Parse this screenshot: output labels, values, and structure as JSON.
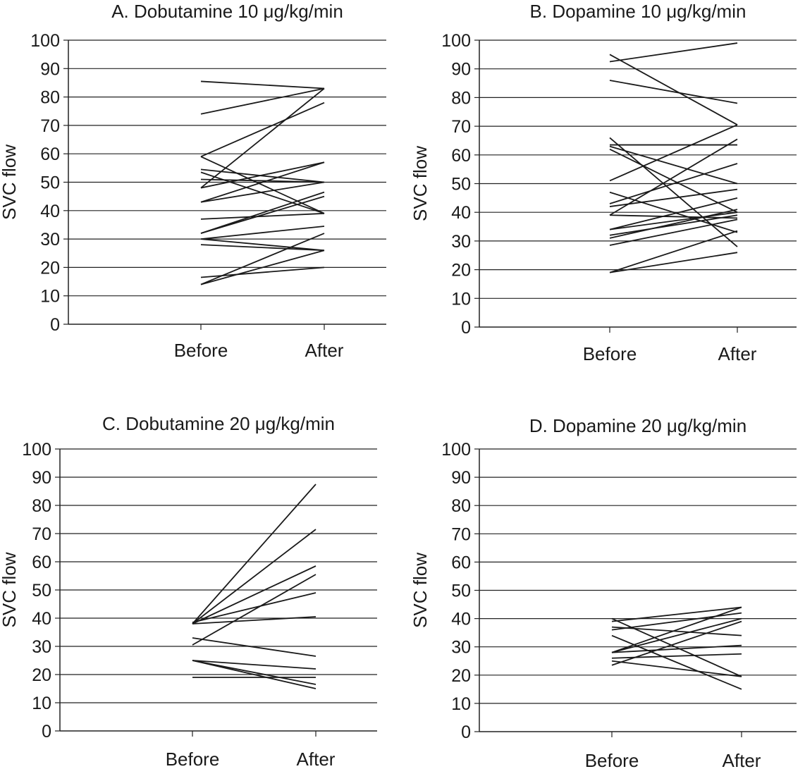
{
  "chart_data": [
    {
      "type": "line",
      "title": "A. Dobutamine 10 μg/kg/min",
      "ylabel": "SVC flow",
      "categories": [
        "Before",
        "After"
      ],
      "ylim": [
        0,
        100
      ],
      "yticks": [
        0,
        10,
        20,
        30,
        40,
        50,
        60,
        70,
        80,
        90,
        100
      ],
      "grid": true,
      "pairs": [
        [
          85.5,
          83
        ],
        [
          74,
          83
        ],
        [
          59,
          78
        ],
        [
          48,
          83
        ],
        [
          59,
          39
        ],
        [
          54.5,
          50
        ],
        [
          53.5,
          39
        ],
        [
          51,
          50
        ],
        [
          48,
          57
        ],
        [
          43,
          57
        ],
        [
          43,
          50
        ],
        [
          37,
          39
        ],
        [
          32,
          46.5
        ],
        [
          32,
          45
        ],
        [
          30,
          26
        ],
        [
          28,
          26
        ],
        [
          30,
          34.5
        ],
        [
          16.5,
          20
        ],
        [
          14,
          32
        ],
        [
          14,
          26
        ]
      ]
    },
    {
      "type": "line",
      "title": "B. Dopamine 10 μg/kg/min",
      "ylabel": "SVC flow",
      "categories": [
        "Before",
        "After"
      ],
      "ylim": [
        0,
        100
      ],
      "yticks": [
        0,
        10,
        20,
        30,
        40,
        50,
        60,
        70,
        80,
        90,
        100
      ],
      "grid": true,
      "pairs": [
        [
          92.5,
          99
        ],
        [
          95,
          70.5
        ],
        [
          86,
          78
        ],
        [
          51,
          70.5
        ],
        [
          63.5,
          63.5
        ],
        [
          63,
          50
        ],
        [
          62,
          40
        ],
        [
          66,
          28
        ],
        [
          47,
          33
        ],
        [
          43,
          57
        ],
        [
          39,
          65.5
        ],
        [
          42,
          48
        ],
        [
          39,
          38
        ],
        [
          34,
          45
        ],
        [
          34,
          40
        ],
        [
          32,
          39
        ],
        [
          31,
          41
        ],
        [
          28.5,
          37.5
        ],
        [
          19,
          33.5
        ],
        [
          19,
          26
        ]
      ]
    },
    {
      "type": "line",
      "title": "C. Dobutamine 20 μg/kg/min",
      "ylabel": "SVC flow",
      "categories": [
        "Before",
        "After"
      ],
      "ylim": [
        0,
        100
      ],
      "yticks": [
        0,
        10,
        20,
        30,
        40,
        50,
        60,
        70,
        80,
        90,
        100
      ],
      "grid": true,
      "pairs": [
        [
          38,
          87.5
        ],
        [
          38,
          71.5
        ],
        [
          38,
          58.5
        ],
        [
          38.5,
          49
        ],
        [
          38,
          40.5
        ],
        [
          33,
          26.5
        ],
        [
          30.5,
          55.5
        ],
        [
          25,
          22
        ],
        [
          25,
          16.5
        ],
        [
          25,
          15
        ],
        [
          19,
          19
        ]
      ]
    },
    {
      "type": "line",
      "title": "D. Dopamine 20 μg/kg/min",
      "ylabel": "SVC flow",
      "categories": [
        "Before",
        "After"
      ],
      "ylim": [
        0,
        100
      ],
      "yticks": [
        0,
        10,
        20,
        30,
        40,
        50,
        60,
        70,
        80,
        90,
        100
      ],
      "grid": true,
      "pairs": [
        [
          39,
          44
        ],
        [
          40,
          19.5
        ],
        [
          37,
          34
        ],
        [
          36,
          42
        ],
        [
          34,
          15
        ],
        [
          28,
          44
        ],
        [
          28,
          40
        ],
        [
          28,
          30.5
        ],
        [
          26,
          27.5
        ],
        [
          25,
          19.5
        ],
        [
          23.5,
          39
        ]
      ]
    }
  ]
}
